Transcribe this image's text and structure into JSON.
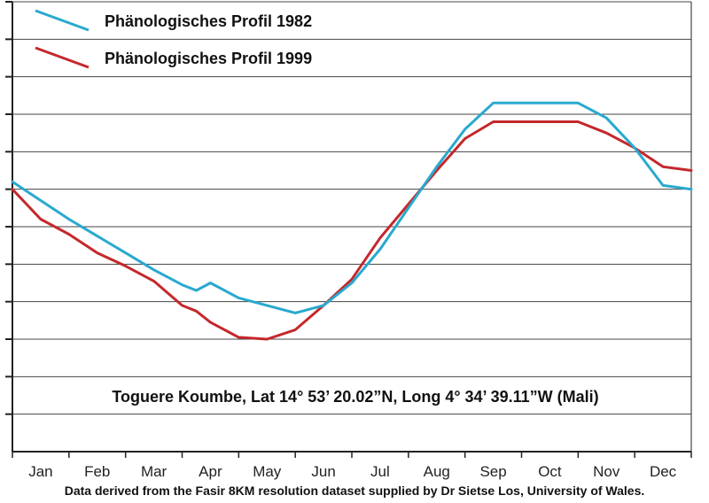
{
  "chart_data": {
    "type": "line",
    "categories": [
      "Jan",
      "Feb",
      "Mar",
      "Apr",
      "May",
      "Jun",
      "Jul",
      "Aug",
      "Sep",
      "Oct",
      "Nov",
      "Dec"
    ],
    "x": [
      0.0,
      0.5,
      1.0,
      1.5,
      2.0,
      2.5,
      3.0,
      3.25,
      3.5,
      4.0,
      4.5,
      5.0,
      5.5,
      6.0,
      6.5,
      7.0,
      7.5,
      8.0,
      8.5,
      9.0,
      9.5,
      10.0,
      10.5,
      11.0,
      11.5,
      12.0
    ],
    "ylim": [
      0,
      12
    ],
    "grid": true,
    "legend_position": "top-left",
    "annotation": "Toguere Koumbe, Lat 14° 53’ 20.02”N, Long 4° 34’ 39.11”W (Mali)",
    "series": [
      {
        "name": "Phänologisches Profil 1982",
        "color": "#29a9cf",
        "values": [
          7.2,
          6.7,
          6.2,
          5.75,
          5.3,
          4.85,
          4.45,
          4.3,
          4.5,
          4.1,
          3.9,
          3.7,
          3.9,
          4.5,
          5.4,
          6.5,
          7.6,
          8.6,
          9.3,
          9.3,
          9.3,
          9.3,
          8.9,
          8.1,
          7.1,
          7.0
        ]
      },
      {
        "name": "Phänologisches Profil 1999",
        "color": "#c4282c",
        "values": [
          7.0,
          6.2,
          5.8,
          5.3,
          4.95,
          4.55,
          3.9,
          3.75,
          3.45,
          3.05,
          3.0,
          3.25,
          3.9,
          4.6,
          5.7,
          6.6,
          7.5,
          8.35,
          8.8,
          8.8,
          8.8,
          8.8,
          8.5,
          8.1,
          7.6,
          7.5
        ]
      }
    ],
    "footnote": "Data derived from the Fasir 8KM resolution dataset supplied by Dr Sietse Los, University of Wales."
  }
}
